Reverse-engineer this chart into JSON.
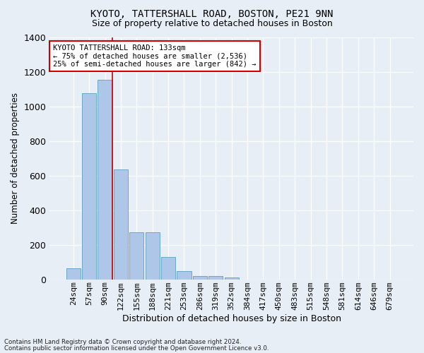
{
  "title": "KYOTO, TATTERSHALL ROAD, BOSTON, PE21 9NN",
  "subtitle": "Size of property relative to detached houses in Boston",
  "xlabel": "Distribution of detached houses by size in Boston",
  "ylabel": "Number of detached properties",
  "footnote1": "Contains HM Land Registry data © Crown copyright and database right 2024.",
  "footnote2": "Contains public sector information licensed under the Open Government Licence v3.0.",
  "categories": [
    "24sqm",
    "57sqm",
    "90sqm",
    "122sqm",
    "155sqm",
    "188sqm",
    "221sqm",
    "253sqm",
    "286sqm",
    "319sqm",
    "352sqm",
    "384sqm",
    "417sqm",
    "450sqm",
    "483sqm",
    "515sqm",
    "548sqm",
    "581sqm",
    "614sqm",
    "646sqm",
    "679sqm"
  ],
  "values": [
    65,
    1075,
    1155,
    635,
    270,
    270,
    130,
    48,
    18,
    18,
    12,
    0,
    0,
    0,
    0,
    0,
    0,
    0,
    0,
    0,
    0
  ],
  "bar_color": "#aec6e8",
  "bar_edge_color": "#5a9fc0",
  "vline_color": "#cc0000",
  "annotation_text": "KYOTO TATTERSHALL ROAD: 133sqm\n← 75% of detached houses are smaller (2,536)\n25% of semi-detached houses are larger (842) →",
  "annotation_box_color": "white",
  "annotation_box_edgecolor": "#cc0000",
  "ylim": [
    0,
    1400
  ],
  "yticks": [
    0,
    200,
    400,
    600,
    800,
    1000,
    1200,
    1400
  ],
  "background_color": "#e8eef5",
  "grid_color": "white",
  "title_fontsize": 10,
  "subtitle_fontsize": 9,
  "ylabel_fontsize": 8.5,
  "xlabel_fontsize": 9,
  "tick_fontsize": 8,
  "annotation_fontsize": 7.5
}
